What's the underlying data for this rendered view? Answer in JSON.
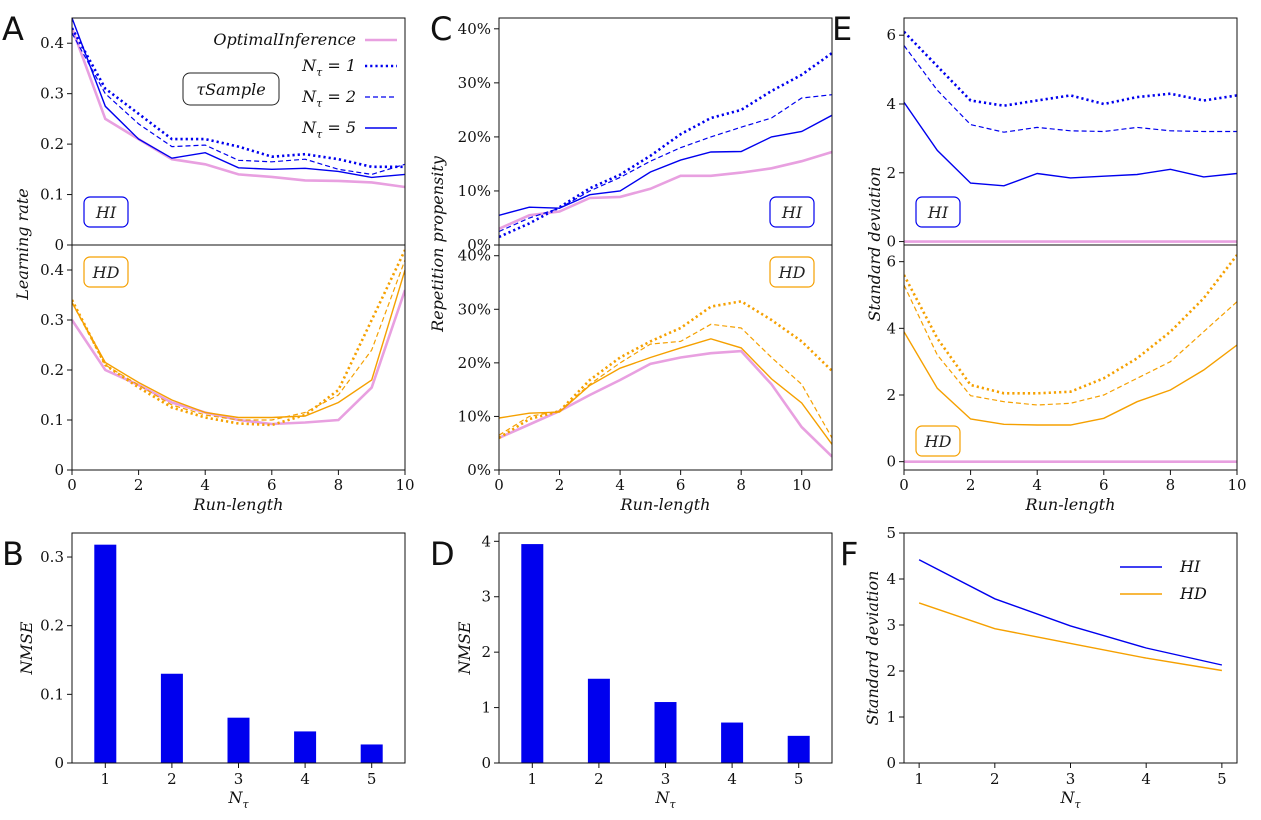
{
  "colors": {
    "blue": "#0000ee",
    "orange": "#f5a000",
    "pink": "#e8a0e0"
  },
  "legend": {
    "optimal": "OptimalInference",
    "sample_box": "τSample",
    "n1": "N",
    "sub": "τ",
    "n1_val": " = 1",
    "n2_val": " = 2",
    "n5_val": " = 5"
  },
  "chart_data": [
    {
      "id": "A",
      "type": "line",
      "panel_letter": "A",
      "xlabel": "Run-length",
      "ylabel": "Learning rate",
      "xlim": [
        0,
        10
      ],
      "xticks": [
        0,
        2,
        4,
        6,
        8,
        10
      ],
      "top": {
        "tag": "HI",
        "ylim": [
          0,
          0.45
        ],
        "yticks": [
          0,
          0.1,
          0.2,
          0.3,
          0.4
        ],
        "ytick_labels": [
          "0",
          "0.1",
          "0.2",
          "0.3",
          "0.4"
        ],
        "x": [
          0,
          1,
          2,
          3,
          4,
          5,
          6,
          7,
          8,
          9,
          10
        ],
        "series": [
          {
            "name": "OptimalInference",
            "values": [
              0.43,
              0.25,
              0.21,
              0.17,
              0.16,
              0.14,
              0.135,
              0.128,
              0.127,
              0.124,
              0.115
            ]
          },
          {
            "name": "N1",
            "values": [
              0.43,
              0.31,
              0.26,
              0.21,
              0.21,
              0.195,
              0.175,
              0.18,
              0.17,
              0.155,
              0.155
            ]
          },
          {
            "name": "N2",
            "values": [
              0.42,
              0.3,
              0.24,
              0.195,
              0.198,
              0.168,
              0.165,
              0.17,
              0.15,
              0.14,
              0.16
            ]
          },
          {
            "name": "N5",
            "values": [
              0.45,
              0.275,
              0.21,
              0.172,
              0.183,
              0.153,
              0.15,
              0.152,
              0.146,
              0.134,
              0.14
            ]
          }
        ]
      },
      "bottom": {
        "tag": "HD",
        "ylim": [
          0,
          0.45
        ],
        "yticks": [
          0,
          0.1,
          0.2,
          0.3,
          0.4
        ],
        "ytick_labels": [
          "0",
          "0.1",
          "0.2",
          "0.3",
          "0.4"
        ],
        "x": [
          0,
          1,
          2,
          3,
          4,
          5,
          6,
          7,
          8,
          9,
          10
        ],
        "series": [
          {
            "name": "OptimalInference",
            "values": [
              0.3,
              0.2,
              0.17,
              0.135,
              0.115,
              0.1,
              0.092,
              0.095,
              0.1,
              0.165,
              0.36
            ]
          },
          {
            "name": "N1",
            "values": [
              0.34,
              0.21,
              0.165,
              0.125,
              0.105,
              0.093,
              0.09,
              0.11,
              0.16,
              0.3,
              0.44
            ]
          },
          {
            "name": "N2",
            "values": [
              0.335,
              0.21,
              0.17,
              0.13,
              0.11,
              0.1,
              0.1,
              0.115,
              0.15,
              0.24,
              0.42
            ]
          },
          {
            "name": "N5",
            "values": [
              0.335,
              0.215,
              0.175,
              0.14,
              0.115,
              0.105,
              0.105,
              0.108,
              0.135,
              0.18,
              0.4
            ]
          }
        ]
      }
    },
    {
      "id": "C",
      "type": "line",
      "panel_letter": "C",
      "xlabel": "Run-length",
      "ylabel": "Repetition propensity",
      "xlim": [
        0,
        11
      ],
      "xticks": [
        0,
        2,
        4,
        6,
        8,
        10
      ],
      "top": {
        "tag": "HI",
        "ylim": [
          0,
          0.42
        ],
        "yticks": [
          0,
          0.1,
          0.2,
          0.3,
          0.4
        ],
        "ytick_labels": [
          "0%",
          "10%",
          "20%",
          "30%",
          "40%"
        ],
        "x": [
          0,
          1,
          2,
          3,
          4,
          5,
          6,
          7,
          8,
          9,
          10,
          11
        ],
        "series": [
          {
            "name": "OptimalInference",
            "values": [
              0.03,
              0.055,
              0.062,
              0.087,
              0.089,
              0.104,
              0.128,
              0.128,
              0.134,
              0.142,
              0.155,
              0.172
            ]
          },
          {
            "name": "N1",
            "values": [
              0.015,
              0.04,
              0.07,
              0.105,
              0.13,
              0.165,
              0.205,
              0.235,
              0.25,
              0.285,
              0.315,
              0.355
            ]
          },
          {
            "name": "N2",
            "values": [
              0.025,
              0.05,
              0.068,
              0.1,
              0.125,
              0.155,
              0.18,
              0.2,
              0.218,
              0.235,
              0.272,
              0.278
            ]
          },
          {
            "name": "N5",
            "values": [
              0.055,
              0.07,
              0.068,
              0.093,
              0.1,
              0.135,
              0.157,
              0.172,
              0.173,
              0.2,
              0.21,
              0.24
            ]
          }
        ]
      },
      "bottom": {
        "tag": "HD",
        "ylim": [
          0,
          0.42
        ],
        "yticks": [
          0,
          0.1,
          0.2,
          0.3,
          0.4
        ],
        "ytick_labels": [
          "0%",
          "10%",
          "20%",
          "30%",
          "40%"
        ],
        "x": [
          0,
          1,
          2,
          3,
          4,
          5,
          6,
          7,
          8,
          9,
          10,
          11
        ],
        "series": [
          {
            "name": "OptimalInference",
            "values": [
              0.06,
              0.085,
              0.11,
              0.14,
              0.168,
              0.198,
              0.21,
              0.218,
              0.222,
              0.16,
              0.08,
              0.025
            ]
          },
          {
            "name": "N1",
            "values": [
              0.06,
              0.095,
              0.11,
              0.168,
              0.21,
              0.24,
              0.265,
              0.305,
              0.315,
              0.28,
              0.24,
              0.185
            ]
          },
          {
            "name": "N2",
            "values": [
              0.065,
              0.1,
              0.11,
              0.16,
              0.2,
              0.235,
              0.24,
              0.272,
              0.265,
              0.21,
              0.16,
              0.06
            ]
          },
          {
            "name": "N5",
            "values": [
              0.097,
              0.106,
              0.108,
              0.158,
              0.19,
              0.21,
              0.228,
              0.245,
              0.228,
              0.17,
              0.125,
              0.048
            ]
          }
        ]
      }
    },
    {
      "id": "E",
      "type": "line",
      "panel_letter": "E",
      "xlabel": "Run-length",
      "ylabel": "Standard deviation",
      "xlim": [
        0,
        10
      ],
      "xticks": [
        0,
        2,
        4,
        6,
        8,
        10
      ],
      "top": {
        "tag": "HI",
        "ylim": [
          -0.1,
          6.5
        ],
        "yticks": [
          0,
          2,
          4,
          6
        ],
        "ytick_labels": [
          "0",
          "2",
          "4",
          "6"
        ],
        "x": [
          0,
          1,
          2,
          3,
          4,
          5,
          6,
          7,
          8,
          9,
          10
        ],
        "series": [
          {
            "name": "OptimalInference",
            "values": [
              0,
              0,
              0,
              0,
              0,
              0,
              0,
              0,
              0,
              0,
              0
            ]
          },
          {
            "name": "N1",
            "values": [
              6.1,
              5.1,
              4.1,
              3.95,
              4.1,
              4.25,
              4.0,
              4.2,
              4.3,
              4.1,
              4.25
            ]
          },
          {
            "name": "N2",
            "values": [
              5.7,
              4.4,
              3.4,
              3.18,
              3.32,
              3.22,
              3.2,
              3.32,
              3.22,
              3.2,
              3.2
            ]
          },
          {
            "name": "N5",
            "values": [
              4.05,
              2.65,
              1.7,
              1.62,
              1.98,
              1.85,
              1.9,
              1.95,
              2.1,
              1.88,
              1.98
            ]
          }
        ]
      },
      "bottom": {
        "tag": "HD",
        "ylim": [
          -0.25,
          6.5
        ],
        "yticks": [
          0,
          2,
          4,
          6
        ],
        "ytick_labels": [
          "0",
          "2",
          "4",
          "6"
        ],
        "x": [
          0,
          1,
          2,
          3,
          4,
          5,
          6,
          7,
          8,
          9,
          10
        ],
        "series": [
          {
            "name": "OptimalInference",
            "values": [
              0,
              0,
              0,
              0,
              0,
              0,
              0,
              0,
              0,
              0,
              0
            ]
          },
          {
            "name": "N1",
            "values": [
              5.6,
              3.7,
              2.3,
              2.05,
              2.05,
              2.1,
              2.5,
              3.1,
              3.9,
              4.9,
              6.2
            ]
          },
          {
            "name": "N2",
            "values": [
              5.3,
              3.2,
              1.98,
              1.8,
              1.7,
              1.75,
              2.0,
              2.5,
              3.0,
              3.9,
              4.8
            ]
          },
          {
            "name": "N5",
            "values": [
              3.9,
              2.2,
              1.28,
              1.12,
              1.1,
              1.1,
              1.3,
              1.8,
              2.15,
              2.75,
              3.5
            ]
          }
        ]
      }
    },
    {
      "id": "B",
      "type": "bar",
      "panel_letter": "B",
      "xlabel": "N",
      "xlabel_sub": "τ",
      "ylabel": "NMSE",
      "categories": [
        "1",
        "2",
        "3",
        "4",
        "5"
      ],
      "values": [
        0.318,
        0.13,
        0.066,
        0.046,
        0.027
      ],
      "ylim": [
        0,
        0.335
      ],
      "yticks": [
        0,
        0.1,
        0.2,
        0.3
      ],
      "ytick_labels": [
        "0",
        "0.1",
        "0.2",
        "0.3"
      ]
    },
    {
      "id": "D",
      "type": "bar",
      "panel_letter": "D",
      "xlabel": "N",
      "xlabel_sub": "τ",
      "ylabel": "NMSE",
      "categories": [
        "1",
        "2",
        "3",
        "4",
        "5"
      ],
      "values": [
        3.95,
        1.52,
        1.1,
        0.73,
        0.49
      ],
      "ylim": [
        0,
        4.15
      ],
      "yticks": [
        0,
        1,
        2,
        3,
        4
      ],
      "ytick_labels": [
        "0",
        "1",
        "2",
        "3",
        "4"
      ]
    },
    {
      "id": "F",
      "type": "line",
      "panel_letter": "F",
      "xlabel": "N",
      "xlabel_sub": "τ",
      "ylabel": "Standard deviation",
      "x": [
        1,
        2,
        3,
        4,
        5
      ],
      "xlim": [
        0.8,
        5.2
      ],
      "xticks": [
        1,
        2,
        3,
        4,
        5
      ],
      "ylim": [
        0,
        5
      ],
      "yticks": [
        0,
        1,
        2,
        3,
        4,
        5
      ],
      "ytick_labels": [
        "0",
        "1",
        "2",
        "3",
        "4",
        "5"
      ],
      "series": [
        {
          "name": "HI",
          "values": [
            4.42,
            3.57,
            2.98,
            2.5,
            2.13
          ]
        },
        {
          "name": "HD",
          "values": [
            3.48,
            2.92,
            2.6,
            2.28,
            2.01
          ]
        }
      ]
    }
  ]
}
